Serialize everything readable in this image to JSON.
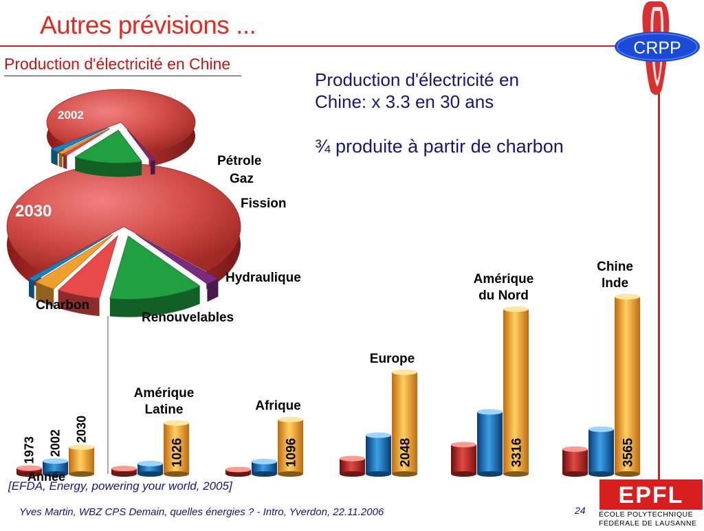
{
  "slide": {
    "title": "Autres prévisions ...",
    "subtitle": "Production d'électricité en Chine",
    "headline_line1": "Production d'électricité en",
    "headline_line2": "Chine: x 3.3 en 30 ans",
    "headline_fraction": "¾ produite à partir de charbon",
    "source": "[EFDA, Energy, powering your world, 2005]",
    "footer": "Yves Martin, WBZ CPS Demain, quelles énergies ? - Intro, Yverdon, 22.11.2006",
    "page_number": "24",
    "logo_crpp": "CRPP",
    "logo_epfl_mark": "EPFL",
    "logo_epfl_line1": "ÉCOLE POLYTECHNIQUE",
    "logo_epfl_line2": "FÉDÉRALE DE LAUSANNE"
  },
  "colors": {
    "title": "#e8281e",
    "text_blue": "#15157a",
    "charbon": "#c83a36",
    "hydraulique": "#20a040",
    "fission": "#e84a4a",
    "gaz": "#f0a030",
    "petrole": "#1a80c0",
    "renouvelables": "#7a2a80",
    "bar_1973": "#c02a26",
    "bar_2002": "#1a78c0",
    "bar_2030": "#f0a030"
  },
  "chart_data": [
    {
      "type": "pie",
      "title": "Production d'électricité en Chine",
      "pies": [
        "2002",
        "2030"
      ],
      "slices": [
        {
          "label": "Charbon",
          "color": "#c83a36"
        },
        {
          "label": "Renouvelables",
          "color": "#7a2a80"
        },
        {
          "label": "Hydraulique",
          "color": "#20a040"
        },
        {
          "label": "Fission",
          "color": "#e84a4a"
        },
        {
          "label": "Gaz",
          "color": "#f0a030"
        },
        {
          "label": "Pétrole",
          "color": "#1a80c0"
        }
      ],
      "shares_2030": [
        75,
        2,
        13,
        6,
        3,
        1
      ],
      "shares_2002": [
        80,
        1,
        15,
        1,
        1,
        2
      ]
    },
    {
      "type": "bar",
      "legend_title": "Année",
      "series": [
        {
          "name": "1973",
          "color": "#c02a26",
          "values": [
            null,
            110,
            90,
            310,
            590,
            500
          ]
        },
        {
          "name": "2002",
          "color": "#1a78c0",
          "values": [
            null,
            210,
            250,
            780,
            1250,
            900
          ]
        },
        {
          "name": "2030",
          "color": "#f0a030",
          "values": [
            null,
            1026,
            1096,
            2048,
            3316,
            3565
          ]
        }
      ],
      "categories": [
        "",
        "Amérique Latine",
        "Afrique",
        "Europe",
        "Amérique du Nord",
        "Chine Inde"
      ],
      "category_labels": [
        {
          "line1": "",
          "line2": ""
        },
        {
          "line1": "Amérique",
          "line2": "Latine"
        },
        {
          "line1": "Afrique",
          "line2": ""
        },
        {
          "line1": "Europe",
          "line2": ""
        },
        {
          "line1": "Amérique",
          "line2": "du Nord"
        },
        {
          "line1": "Chine",
          "line2": "Inde"
        }
      ],
      "legend_bars": [
        120,
        260,
        540
      ],
      "data_labels": [
        "1026",
        "1096",
        "2048",
        "3316",
        "3565"
      ],
      "ylabel": "",
      "ylim": [
        0,
        3800
      ]
    }
  ]
}
